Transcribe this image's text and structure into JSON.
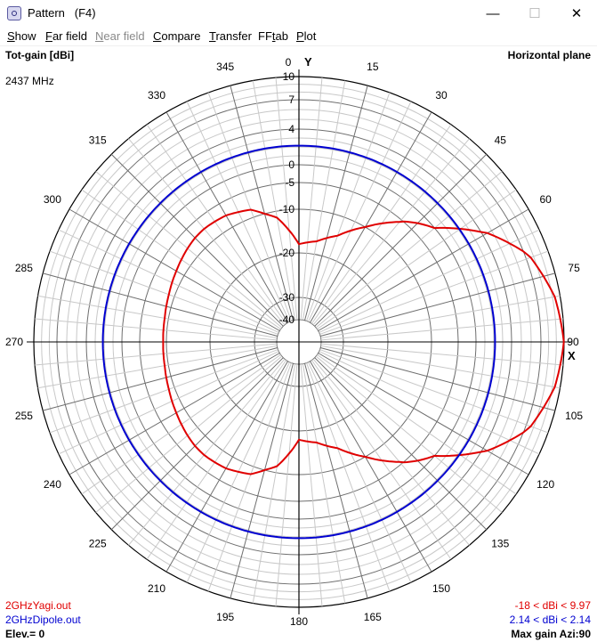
{
  "window": {
    "title": "Pattern   (F4)",
    "icon": "antenna-app-icon"
  },
  "window_controls": {
    "minimize": "—",
    "maximize": "☐",
    "close": "✕"
  },
  "menu": [
    {
      "label": "Show",
      "mnemonic": "S",
      "rest": "how",
      "enabled": true
    },
    {
      "label": "Far field",
      "mnemonic": "F",
      "rest": "ar field",
      "enabled": true
    },
    {
      "label": "Near field",
      "mnemonic": "N",
      "rest": "ear field",
      "enabled": false
    },
    {
      "label": "Compare",
      "mnemonic": "C",
      "rest": "ompare",
      "enabled": true
    },
    {
      "label": "Transfer",
      "mnemonic": "T",
      "rest": "ransfer",
      "enabled": true
    },
    {
      "label": "FFtab",
      "pre": "FF",
      "mnemonic": "t",
      "rest": "ab",
      "enabled": true
    },
    {
      "label": "Plot",
      "mnemonic": "P",
      "rest": "lot",
      "enabled": true
    }
  ],
  "plot_header": {
    "quantity": "Tot-gain [dBi]",
    "plane": "Horizontal plane",
    "frequency": "2437 MHz",
    "top_axis": "Y",
    "right_axis": "X"
  },
  "footer": {
    "file1": "2GHzYagi.out",
    "file2": "2GHzDipole.out",
    "range1": "-18 < dBi < 9.97",
    "range2": "2.14 < dBi < 2.14",
    "elevation": "Elev.= 0",
    "max_gain": "Max gain Azi:90"
  },
  "colors": {
    "series1": "#e00000",
    "series2": "#0000d0",
    "grid": "#b4b4b4",
    "axis": "#000000"
  },
  "chart_data": {
    "type": "polar",
    "angle_labels": [
      "0",
      "15",
      "30",
      "45",
      "60",
      "75",
      "90",
      "105",
      "120",
      "135",
      "150",
      "165",
      "180",
      "195",
      "210",
      "225",
      "240",
      "255",
      "270",
      "285",
      "300",
      "315",
      "330",
      "345"
    ],
    "radial_ticks": [
      "10",
      "7",
      "4",
      "0",
      "-5",
      "-10",
      "-20",
      "-30",
      "-40"
    ],
    "radial_tick_values": [
      10,
      7,
      4,
      0,
      -5,
      -10,
      -20,
      -30,
      -40
    ],
    "series": [
      {
        "name": "2GHzYagi.out",
        "azimuth_deg": [
          0,
          10,
          20,
          30,
          40,
          45,
          50,
          60,
          70,
          80,
          90,
          100,
          110,
          120,
          130,
          135,
          140,
          150,
          160,
          170,
          180,
          190,
          200,
          210,
          220,
          225,
          230,
          240,
          250,
          260,
          270,
          280,
          290,
          300,
          310,
          315,
          320,
          330,
          340,
          350,
          360
        ],
        "gain_dbi": [
          -18,
          -17,
          -14.5,
          -10,
          -5.5,
          -2.6,
          0,
          4.5,
          7.6,
          9.3,
          9.97,
          9.3,
          7.6,
          4.5,
          0,
          -2.6,
          -5.5,
          -10,
          -14.5,
          -17,
          -18,
          -11.5,
          -8.5,
          -7.5,
          -7.2,
          -7.3,
          -7.6,
          -8.3,
          -8.9,
          -9.3,
          -9.4,
          -9.3,
          -8.9,
          -8.3,
          -7.6,
          -7.3,
          -7.2,
          -7.5,
          -8.5,
          -11.5,
          -18
        ]
      },
      {
        "name": "2GHzDipole.out",
        "azimuth_deg": [
          0,
          90,
          180,
          270,
          360
        ],
        "gain_dbi": [
          2.14,
          2.14,
          2.14,
          2.14,
          2.14
        ]
      }
    ]
  }
}
